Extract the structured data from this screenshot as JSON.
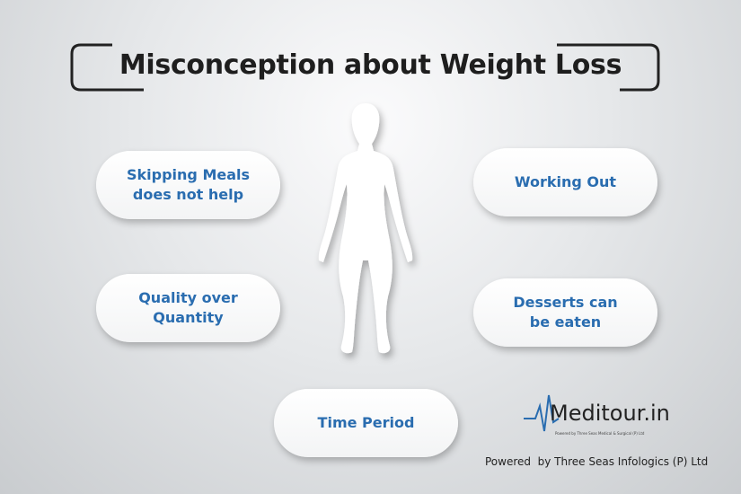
{
  "title": "Misconception about Weight Loss",
  "items": [
    {
      "lines": [
        "Skipping Meals",
        "does not help"
      ]
    },
    {
      "lines": [
        "Working Out"
      ]
    },
    {
      "lines": [
        "Quality over",
        "Quantity"
      ]
    },
    {
      "lines": [
        "Desserts can",
        "be eaten"
      ]
    },
    {
      "lines": [
        "Time Period"
      ]
    }
  ],
  "logo": {
    "name": "Meditour.in",
    "tagline": "Powered by Three Seas Medical & Surgical (P) Ltd"
  },
  "footer": "Powered  by Three Seas Infologics (P) Ltd"
}
